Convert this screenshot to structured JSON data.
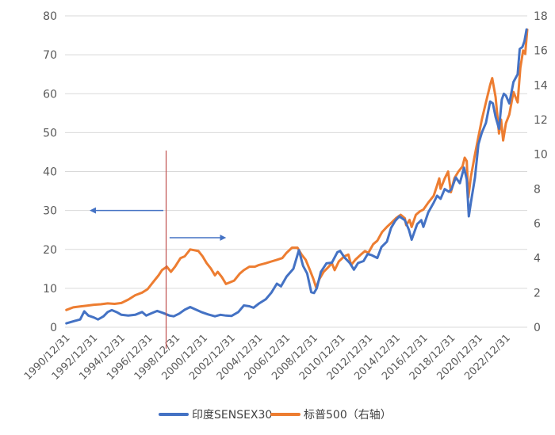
{
  "chart_data": {
    "type": "line",
    "y_left": {
      "min": 0,
      "max": 80,
      "ticks": [
        0,
        10,
        20,
        30,
        40,
        50,
        60,
        70,
        80
      ]
    },
    "y_right": {
      "min": 0,
      "max": 18,
      "ticks": [
        0,
        2,
        4,
        6,
        8,
        10,
        12,
        14,
        16,
        18
      ]
    },
    "x_range": [
      1990.9,
      2024.5
    ],
    "x_tick_labels": [
      "1990/12/31",
      "1992/12/31",
      "1994/12/31",
      "1996/12/31",
      "1998/12/31",
      "2000/12/31",
      "2002/12/31",
      "2004/12/31",
      "2006/12/31",
      "2008/12/31",
      "2010/12/31",
      "2012/12/31",
      "2014/12/31",
      "2016/12/31",
      "2018/12/31",
      "2020/12/31",
      "2022/12/31"
    ],
    "grid": "horizontal",
    "legend": "bottom-center",
    "series": [
      {
        "name": "印度SENSEX30",
        "axis": "left",
        "color": "#4472C4",
        "points": [
          [
            1991.0,
            1.0
          ],
          [
            1991.6,
            1.6
          ],
          [
            1992.0,
            2.0
          ],
          [
            1992.3,
            4.1
          ],
          [
            1992.6,
            3.0
          ],
          [
            1993.0,
            2.5
          ],
          [
            1993.3,
            2.0
          ],
          [
            1993.7,
            2.8
          ],
          [
            1994.0,
            3.9
          ],
          [
            1994.3,
            4.4
          ],
          [
            1994.7,
            3.8
          ],
          [
            1995.0,
            3.2
          ],
          [
            1995.5,
            3.0
          ],
          [
            1996.0,
            3.2
          ],
          [
            1996.5,
            3.9
          ],
          [
            1996.8,
            3.0
          ],
          [
            1997.2,
            3.6
          ],
          [
            1997.6,
            4.2
          ],
          [
            1998.0,
            3.7
          ],
          [
            1998.5,
            3.0
          ],
          [
            1998.8,
            2.8
          ],
          [
            1999.2,
            3.5
          ],
          [
            1999.6,
            4.5
          ],
          [
            2000.0,
            5.2
          ],
          [
            2000.3,
            4.7
          ],
          [
            2000.8,
            3.9
          ],
          [
            2001.3,
            3.3
          ],
          [
            2001.8,
            2.8
          ],
          [
            2002.2,
            3.2
          ],
          [
            2002.6,
            3.0
          ],
          [
            2003.0,
            2.9
          ],
          [
            2003.5,
            3.9
          ],
          [
            2003.9,
            5.6
          ],
          [
            2004.3,
            5.4
          ],
          [
            2004.6,
            5.0
          ],
          [
            2005.0,
            6.1
          ],
          [
            2005.5,
            7.2
          ],
          [
            2005.9,
            8.9
          ],
          [
            2006.3,
            11.2
          ],
          [
            2006.6,
            10.5
          ],
          [
            2007.0,
            13.0
          ],
          [
            2007.5,
            15.0
          ],
          [
            2007.9,
            19.8
          ],
          [
            2008.2,
            15.8
          ],
          [
            2008.5,
            13.8
          ],
          [
            2008.8,
            9.0
          ],
          [
            2009.0,
            8.8
          ],
          [
            2009.2,
            10.0
          ],
          [
            2009.5,
            14.2
          ],
          [
            2009.9,
            16.4
          ],
          [
            2010.3,
            16.6
          ],
          [
            2010.7,
            19.3
          ],
          [
            2010.9,
            19.6
          ],
          [
            2011.2,
            18.0
          ],
          [
            2011.6,
            16.5
          ],
          [
            2011.9,
            14.8
          ],
          [
            2012.2,
            16.5
          ],
          [
            2012.6,
            17.0
          ],
          [
            2012.9,
            18.8
          ],
          [
            2013.2,
            18.5
          ],
          [
            2013.6,
            17.8
          ],
          [
            2013.9,
            20.6
          ],
          [
            2014.3,
            22.0
          ],
          [
            2014.6,
            25.5
          ],
          [
            2014.9,
            27.3
          ],
          [
            2015.2,
            28.5
          ],
          [
            2015.6,
            27.5
          ],
          [
            2015.9,
            25.0
          ],
          [
            2016.1,
            22.5
          ],
          [
            2016.5,
            26.5
          ],
          [
            2016.8,
            27.5
          ],
          [
            2016.95,
            25.8
          ],
          [
            2017.3,
            29.5
          ],
          [
            2017.7,
            32.0
          ],
          [
            2017.95,
            33.8
          ],
          [
            2018.2,
            33.0
          ],
          [
            2018.5,
            35.5
          ],
          [
            2018.8,
            34.8
          ],
          [
            2019.0,
            35.5
          ],
          [
            2019.3,
            38.5
          ],
          [
            2019.6,
            37.0
          ],
          [
            2019.9,
            41.0
          ],
          [
            2020.1,
            38.0
          ],
          [
            2020.25,
            28.5
          ],
          [
            2020.4,
            32.0
          ],
          [
            2020.7,
            38.5
          ],
          [
            2020.95,
            47.0
          ],
          [
            2021.2,
            50.0
          ],
          [
            2021.5,
            52.5
          ],
          [
            2021.8,
            58.0
          ],
          [
            2022.0,
            57.5
          ],
          [
            2022.2,
            54.0
          ],
          [
            2022.45,
            51.0
          ],
          [
            2022.65,
            58.5
          ],
          [
            2022.8,
            60.0
          ],
          [
            2022.95,
            59.5
          ],
          [
            2023.2,
            57.5
          ],
          [
            2023.5,
            63.0
          ],
          [
            2023.8,
            65.0
          ],
          [
            2023.95,
            71.5
          ],
          [
            2024.15,
            72.0
          ],
          [
            2024.3,
            73.5
          ],
          [
            2024.45,
            76.5
          ]
        ]
      },
      {
        "name": "标普500（右轴）",
        "axis": "right",
        "color": "#ED7D31",
        "points": [
          [
            1991.0,
            1.0
          ],
          [
            1991.5,
            1.15
          ],
          [
            1992.0,
            1.2
          ],
          [
            1992.5,
            1.25
          ],
          [
            1993.0,
            1.3
          ],
          [
            1993.5,
            1.33
          ],
          [
            1994.0,
            1.38
          ],
          [
            1994.5,
            1.35
          ],
          [
            1995.0,
            1.4
          ],
          [
            1995.5,
            1.6
          ],
          [
            1996.0,
            1.85
          ],
          [
            1996.5,
            2.0
          ],
          [
            1996.9,
            2.2
          ],
          [
            1997.3,
            2.6
          ],
          [
            1997.7,
            3.0
          ],
          [
            1997.95,
            3.3
          ],
          [
            1998.3,
            3.5
          ],
          [
            1998.6,
            3.2
          ],
          [
            1998.9,
            3.5
          ],
          [
            1999.3,
            4.0
          ],
          [
            1999.6,
            4.1
          ],
          [
            2000.0,
            4.5
          ],
          [
            2000.3,
            4.45
          ],
          [
            2000.6,
            4.4
          ],
          [
            2000.9,
            4.1
          ],
          [
            2001.2,
            3.7
          ],
          [
            2001.5,
            3.4
          ],
          [
            2001.8,
            3.0
          ],
          [
            2002.0,
            3.2
          ],
          [
            2002.3,
            2.9
          ],
          [
            2002.6,
            2.5
          ],
          [
            2002.9,
            2.6
          ],
          [
            2003.2,
            2.7
          ],
          [
            2003.6,
            3.1
          ],
          [
            2003.9,
            3.3
          ],
          [
            2004.3,
            3.5
          ],
          [
            2004.7,
            3.5
          ],
          [
            2005.0,
            3.6
          ],
          [
            2005.5,
            3.7
          ],
          [
            2005.9,
            3.8
          ],
          [
            2006.3,
            3.9
          ],
          [
            2006.7,
            4.0
          ],
          [
            2007.0,
            4.3
          ],
          [
            2007.4,
            4.6
          ],
          [
            2007.8,
            4.6
          ],
          [
            2008.1,
            4.2
          ],
          [
            2008.4,
            3.9
          ],
          [
            2008.7,
            3.3
          ],
          [
            2008.95,
            2.8
          ],
          [
            2009.15,
            2.3
          ],
          [
            2009.4,
            2.8
          ],
          [
            2009.7,
            3.2
          ],
          [
            2009.95,
            3.4
          ],
          [
            2010.3,
            3.7
          ],
          [
            2010.5,
            3.3
          ],
          [
            2010.8,
            3.8
          ],
          [
            2011.2,
            4.1
          ],
          [
            2011.5,
            4.2
          ],
          [
            2011.7,
            3.6
          ],
          [
            2012.0,
            3.9
          ],
          [
            2012.4,
            4.2
          ],
          [
            2012.7,
            4.4
          ],
          [
            2012.95,
            4.3
          ],
          [
            2013.3,
            4.8
          ],
          [
            2013.6,
            5.0
          ],
          [
            2013.95,
            5.5
          ],
          [
            2014.3,
            5.8
          ],
          [
            2014.7,
            6.1
          ],
          [
            2014.95,
            6.3
          ],
          [
            2015.3,
            6.5
          ],
          [
            2015.6,
            6.3
          ],
          [
            2015.7,
            5.9
          ],
          [
            2015.95,
            6.2
          ],
          [
            2016.1,
            5.8
          ],
          [
            2016.4,
            6.5
          ],
          [
            2016.7,
            6.7
          ],
          [
            2016.95,
            6.8
          ],
          [
            2017.3,
            7.2
          ],
          [
            2017.7,
            7.6
          ],
          [
            2017.95,
            8.2
          ],
          [
            2018.1,
            8.6
          ],
          [
            2018.2,
            8.0
          ],
          [
            2018.5,
            8.6
          ],
          [
            2018.75,
            9.0
          ],
          [
            2018.95,
            7.8
          ],
          [
            2019.2,
            8.6
          ],
          [
            2019.5,
            9.0
          ],
          [
            2019.8,
            9.3
          ],
          [
            2019.95,
            9.8
          ],
          [
            2020.1,
            9.6
          ],
          [
            2020.22,
            7.5
          ],
          [
            2020.4,
            8.7
          ],
          [
            2020.7,
            10.0
          ],
          [
            2020.95,
            11.0
          ],
          [
            2021.2,
            12.0
          ],
          [
            2021.5,
            13.0
          ],
          [
            2021.8,
            14.0
          ],
          [
            2021.95,
            14.4
          ],
          [
            2022.2,
            13.3
          ],
          [
            2022.45,
            11.2
          ],
          [
            2022.6,
            12.0
          ],
          [
            2022.75,
            10.8
          ],
          [
            2022.95,
            11.8
          ],
          [
            2023.2,
            12.3
          ],
          [
            2023.5,
            13.6
          ],
          [
            2023.8,
            13.0
          ],
          [
            2024.0,
            15.0
          ],
          [
            2024.2,
            16.0
          ],
          [
            2024.35,
            15.8
          ],
          [
            2024.5,
            17.2
          ]
        ]
      }
    ],
    "annotations": [
      {
        "kind": "vertical-line",
        "x": 1998.25,
        "color": "#C0504D"
      },
      {
        "kind": "arrow",
        "direction": "left",
        "axis": "left",
        "y": 30.0,
        "x_from": 1998.05,
        "x_to": 1992.8,
        "color": "#4472C4"
      },
      {
        "kind": "arrow",
        "direction": "right",
        "axis": "left",
        "y": 23.0,
        "x_from": 1998.5,
        "x_to": 2002.5,
        "color": "#4472C4"
      }
    ]
  }
}
